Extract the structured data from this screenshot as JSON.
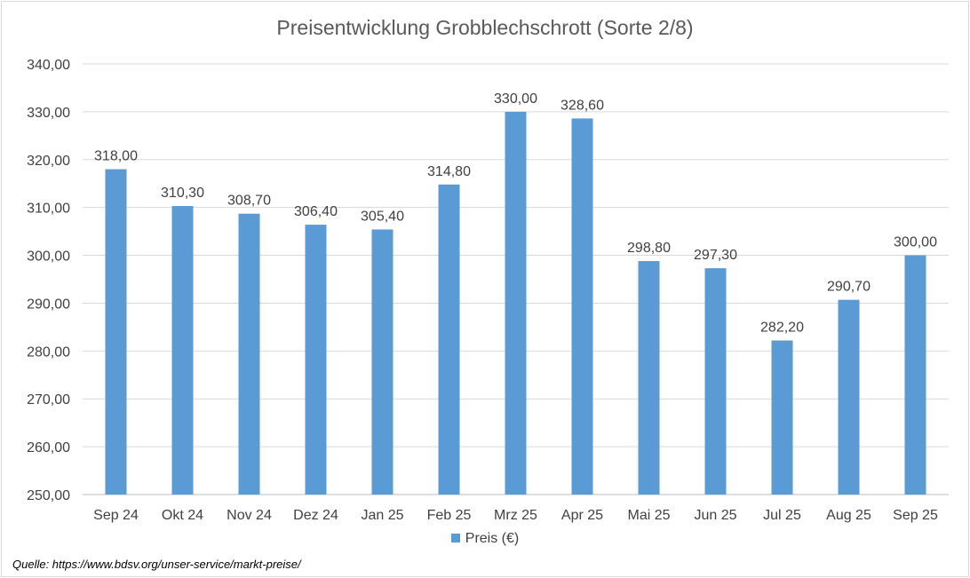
{
  "chart_data": {
    "type": "bar",
    "title": "Preisentwicklung Grobblechschrott (Sorte 2/8)",
    "categories": [
      "Sep 24",
      "Okt 24",
      "Nov 24",
      "Dez 24",
      "Jan 25",
      "Feb 25",
      "Mrz 25",
      "Apr 25",
      "Mai 25",
      "Jun 25",
      "Jul 25",
      "Aug 25",
      "Sep 25"
    ],
    "series": [
      {
        "name": "Preis (€)",
        "values": [
          318.0,
          310.3,
          308.7,
          306.4,
          305.4,
          314.8,
          330.0,
          328.6,
          298.8,
          297.3,
          282.2,
          290.7,
          300.0
        ],
        "color": "#5b9bd5"
      }
    ],
    "data_labels": [
      "318,00",
      "310,30",
      "308,70",
      "306,40",
      "305,40",
      "314,80",
      "330,00",
      "328,60",
      "298,80",
      "297,30",
      "282,20",
      "290,70",
      "300,00"
    ],
    "y_ticks": [
      "250,00",
      "260,00",
      "270,00",
      "280,00",
      "290,00",
      "300,00",
      "310,00",
      "320,00",
      "330,00",
      "340,00"
    ],
    "ylim": [
      250,
      340
    ],
    "grid": true,
    "legend_position": "bottom",
    "xlabel": "",
    "ylabel": ""
  },
  "source": "Quelle: https://www.bdsv.org/unser-service/markt-preise/"
}
